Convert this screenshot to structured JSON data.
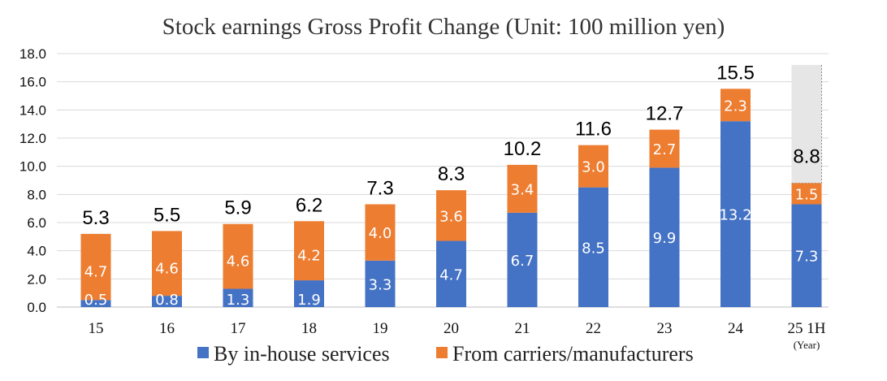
{
  "chart_data": {
    "type": "bar",
    "stacked": true,
    "title": "Stock earnings Gross Profit Change (Unit: 100 million yen)",
    "categories": [
      "15",
      "16",
      "17",
      "18",
      "19",
      "20",
      "21",
      "22",
      "23",
      "24",
      "25 1H"
    ],
    "category_sublabels": [
      "",
      "",
      "",
      "",
      "",
      "",
      "",
      "",
      "",
      "",
      "(Year)"
    ],
    "series": [
      {
        "name": "By in-house services",
        "color": "#4472c4",
        "values": [
          0.5,
          0.8,
          1.3,
          1.9,
          3.3,
          4.7,
          6.7,
          8.5,
          9.9,
          13.2,
          7.3
        ]
      },
      {
        "name": "From carriers/manufacturers",
        "color": "#ed7d31",
        "values": [
          4.7,
          4.6,
          4.6,
          4.2,
          4.0,
          3.6,
          3.4,
          3.0,
          2.7,
          2.3,
          1.5
        ]
      }
    ],
    "totals": [
      5.3,
      5.5,
      5.9,
      6.2,
      7.3,
      8.3,
      10.2,
      11.6,
      12.7,
      15.5,
      8.8
    ],
    "placeholder": {
      "category": "25 1H",
      "top": 17.2,
      "color": "#e7e6e6"
    },
    "ylim": [
      0,
      18
    ],
    "yticks": [
      "0.0",
      "2.0",
      "4.0",
      "6.0",
      "8.0",
      "10.0",
      "12.0",
      "14.0",
      "16.0",
      "18.0"
    ],
    "xlabel": "",
    "ylabel": "",
    "grid": true,
    "legend": "bottom"
  }
}
